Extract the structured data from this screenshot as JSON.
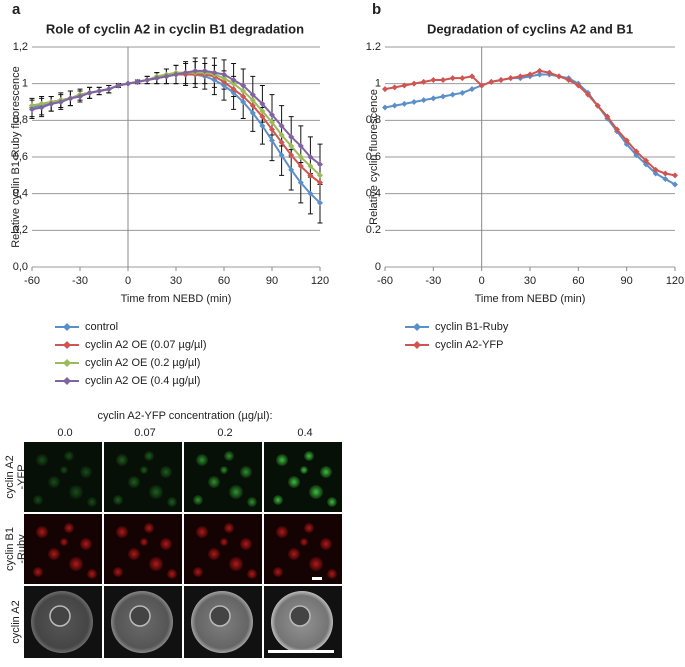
{
  "chart_data": [
    {
      "type": "line",
      "panel_label": "a",
      "title": "Role of  cyclin A2 in cyclin B1 degradation",
      "x_label": "Time from NEBD (min)",
      "y_label": "Relative cyclin B1-Ruby fluorescence",
      "x": [
        -60,
        -54,
        -48,
        -42,
        -36,
        -30,
        -24,
        -18,
        -12,
        -6,
        0,
        6,
        12,
        18,
        24,
        30,
        36,
        42,
        48,
        54,
        60,
        66,
        72,
        78,
        84,
        90,
        96,
        102,
        108,
        114,
        120
      ],
      "xlim": [
        -60,
        120
      ],
      "xticks": [
        -60,
        -30,
        0,
        30,
        60,
        90,
        120
      ],
      "ylim": [
        0,
        1.2
      ],
      "yticks": [
        {
          "value": 0,
          "label": "0,0"
        },
        {
          "value": 0.2,
          "label": "0,2"
        },
        {
          "value": 0.4,
          "label": "0,4"
        },
        {
          "value": 0.6,
          "label": "0,6"
        },
        {
          "value": 0.8,
          "label": "0,8"
        },
        {
          "value": 1,
          "label": "1"
        },
        {
          "value": 1.2,
          "label": "1,2"
        }
      ],
      "grid": true,
      "legend": "below",
      "series": [
        {
          "name": "control",
          "color": "#5b8fc9",
          "values": [
            0.87,
            0.88,
            0.89,
            0.91,
            0.92,
            0.94,
            0.95,
            0.96,
            0.97,
            0.99,
            1.0,
            1.01,
            1.02,
            1.03,
            1.04,
            1.05,
            1.05,
            1.05,
            1.04,
            1.02,
            0.99,
            0.95,
            0.9,
            0.84,
            0.77,
            0.69,
            0.61,
            0.53,
            0.46,
            0.4,
            0.35
          ],
          "errors": [
            0.05,
            0.05,
            0.04,
            0.04,
            0.04,
            0.03,
            0.03,
            0.02,
            0.02,
            0.01,
            0.0,
            0.01,
            0.02,
            0.03,
            0.04,
            0.05,
            0.06,
            0.07,
            0.07,
            0.08,
            0.08,
            0.09,
            0.09,
            0.1,
            0.1,
            0.11,
            0.11,
            0.11,
            0.11,
            0.11,
            0.11
          ]
        },
        {
          "name": "cyclin A2 OE (0.07 µg/µl)",
          "color": "#d0544f",
          "values": [
            0.88,
            0.89,
            0.9,
            0.91,
            0.92,
            0.94,
            0.95,
            0.96,
            0.97,
            0.99,
            1.0,
            1.01,
            1.02,
            1.03,
            1.04,
            1.05,
            1.05,
            1.05,
            1.05,
            1.04,
            1.01,
            0.97,
            0.93,
            0.88,
            0.82,
            0.75,
            0.68,
            0.61,
            0.55,
            0.5,
            0.46
          ]
        },
        {
          "name": "cyclin A2 OE (0.2 µg/µl)",
          "color": "#9bbb59",
          "values": [
            0.88,
            0.89,
            0.9,
            0.91,
            0.92,
            0.94,
            0.95,
            0.96,
            0.97,
            0.99,
            1.0,
            1.01,
            1.02,
            1.04,
            1.05,
            1.06,
            1.06,
            1.06,
            1.06,
            1.05,
            1.03,
            1.0,
            0.96,
            0.91,
            0.85,
            0.79,
            0.72,
            0.66,
            0.6,
            0.55,
            0.5
          ]
        },
        {
          "name": "cyclin A2 OE (0.4 µg/µl)",
          "color": "#8064a2",
          "values": [
            0.86,
            0.87,
            0.89,
            0.9,
            0.92,
            0.93,
            0.95,
            0.96,
            0.97,
            0.99,
            1.0,
            1.01,
            1.02,
            1.03,
            1.04,
            1.05,
            1.06,
            1.07,
            1.07,
            1.06,
            1.05,
            1.02,
            0.99,
            0.94,
            0.89,
            0.83,
            0.77,
            0.71,
            0.66,
            0.6,
            0.56
          ],
          "errors": [
            0.05,
            0.05,
            0.04,
            0.04,
            0.04,
            0.03,
            0.03,
            0.02,
            0.02,
            0.01,
            0.0,
            0.01,
            0.02,
            0.03,
            0.04,
            0.05,
            0.06,
            0.07,
            0.07,
            0.08,
            0.08,
            0.09,
            0.09,
            0.1,
            0.1,
            0.11,
            0.11,
            0.11,
            0.11,
            0.11,
            0.11
          ]
        }
      ]
    },
    {
      "type": "line",
      "panel_label": "b",
      "title": "Degradation of cyclins A2 and B1",
      "x_label": "Time from NEBD (min)",
      "y_label": "Relative cyclin fluorescence",
      "x": [
        -60,
        -54,
        -48,
        -42,
        -36,
        -30,
        -24,
        -18,
        -12,
        -6,
        0,
        6,
        12,
        18,
        24,
        30,
        36,
        42,
        48,
        54,
        60,
        66,
        72,
        78,
        84,
        90,
        96,
        102,
        108,
        114,
        120
      ],
      "xlim": [
        -60,
        120
      ],
      "xticks": [
        -60,
        -30,
        0,
        30,
        60,
        90,
        120
      ],
      "ylim": [
        0,
        1.2
      ],
      "yticks": [
        0,
        0.2,
        0.4,
        0.6,
        0.8,
        1,
        1.2
      ],
      "grid": true,
      "legend": "below",
      "series": [
        {
          "name": "cyclin B1-Ruby",
          "color": "#5b8fc9",
          "values": [
            0.87,
            0.88,
            0.89,
            0.9,
            0.91,
            0.92,
            0.93,
            0.94,
            0.95,
            0.97,
            0.99,
            1.01,
            1.02,
            1.03,
            1.03,
            1.04,
            1.05,
            1.05,
            1.04,
            1.03,
            1.0,
            0.95,
            0.88,
            0.81,
            0.74,
            0.67,
            0.61,
            0.56,
            0.51,
            0.48,
            0.45
          ]
        },
        {
          "name": "cyclin A2-YFP",
          "color": "#d0544f",
          "values": [
            0.97,
            0.98,
            0.99,
            1.0,
            1.01,
            1.02,
            1.02,
            1.03,
            1.03,
            1.04,
            0.99,
            1.01,
            1.02,
            1.03,
            1.04,
            1.05,
            1.07,
            1.06,
            1.04,
            1.02,
            0.99,
            0.94,
            0.88,
            0.82,
            0.75,
            0.69,
            0.63,
            0.58,
            0.53,
            0.51,
            0.5
          ]
        }
      ]
    }
  ],
  "image_panel": {
    "title": "cyclin A2-YFP concentration (µg/µl):",
    "columns": [
      "0.0",
      "0.07",
      "0.2",
      "0.4"
    ],
    "rows": [
      [
        "cyclin A2",
        "-YFP"
      ],
      [
        "cyclin B1",
        "-Ruby"
      ],
      [
        "cyclin A2"
      ]
    ]
  }
}
